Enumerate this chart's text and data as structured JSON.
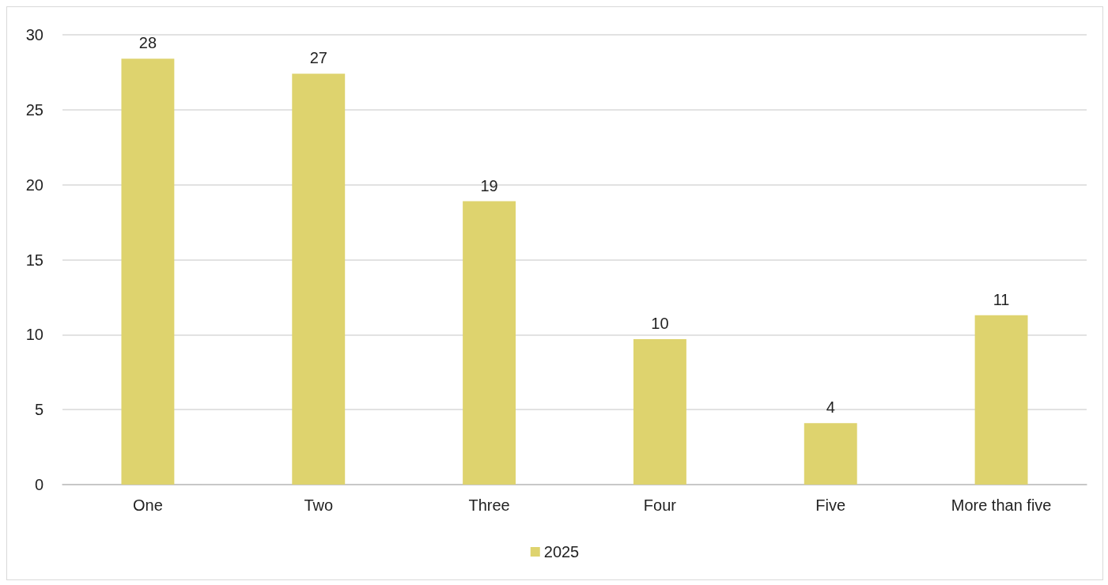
{
  "chart_data": {
    "type": "bar",
    "categories": [
      "One",
      "Two",
      "Three",
      "Four",
      "Five",
      "More than five"
    ],
    "series": [
      {
        "name": "2025",
        "color": "#ded36e",
        "values": [
          28.4,
          27.4,
          18.9,
          9.7,
          4.1,
          11.3
        ],
        "value_labels": [
          "28",
          "27",
          "19",
          "10",
          "4",
          "11"
        ]
      }
    ],
    "ylim": [
      0,
      30
    ],
    "yticks": [
      0,
      5,
      10,
      15,
      20,
      25,
      30
    ],
    "grid": "y",
    "legend": "bottom"
  }
}
